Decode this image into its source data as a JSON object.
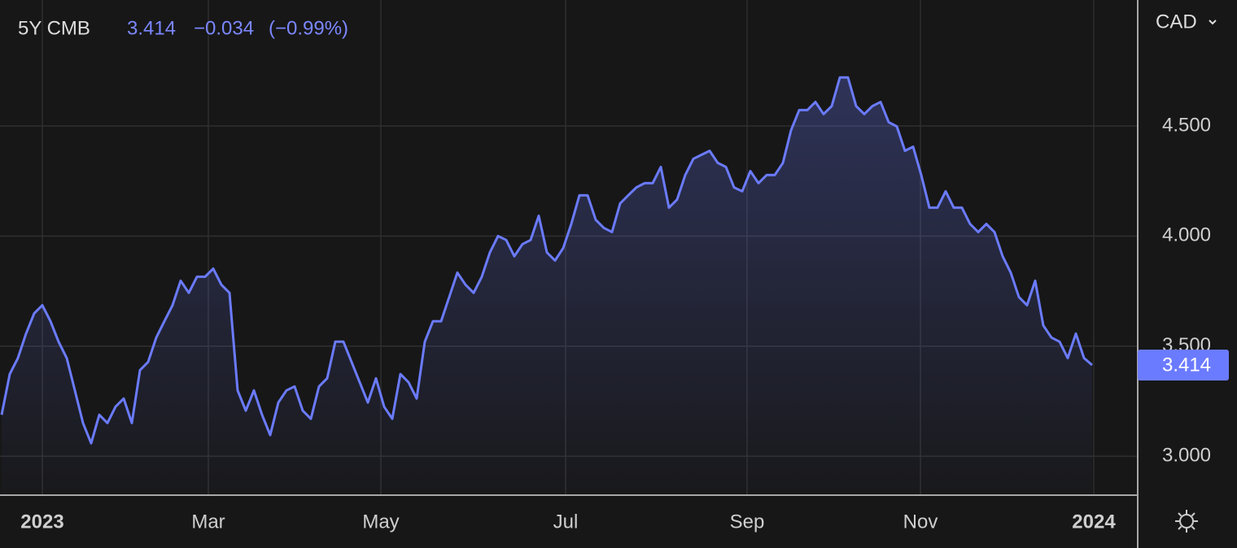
{
  "chart_data": {
    "type": "line",
    "title": "5Y CMB",
    "currency": "CAD",
    "change": "−0.034",
    "change_percent": "(−0.99%)",
    "series": [
      {
        "name": "5Y CMB",
        "color": "#6b7bff",
        "values": [
          3.188,
          3.373,
          3.446,
          3.557,
          3.649,
          3.686,
          3.613,
          3.52,
          3.446,
          3.299,
          3.151,
          3.059,
          3.188,
          3.151,
          3.225,
          3.262,
          3.151,
          3.391,
          3.428,
          3.539,
          3.613,
          3.686,
          3.797,
          3.742,
          3.815,
          3.815,
          3.852,
          3.779,
          3.742,
          3.299,
          3.207,
          3.299,
          3.188,
          3.096,
          3.244,
          3.299,
          3.317,
          3.207,
          3.17,
          3.317,
          3.354,
          3.52,
          3.52,
          3.428,
          3.336,
          3.244,
          3.354,
          3.225,
          3.17,
          3.373,
          3.336,
          3.262,
          3.52,
          3.613,
          3.613,
          3.723,
          3.834,
          3.779,
          3.742,
          3.815,
          3.926,
          4.0,
          3.982,
          3.908,
          3.963,
          3.982,
          4.092,
          3.926,
          3.889,
          3.945,
          4.055,
          4.185,
          4.185,
          4.074,
          4.037,
          4.018,
          4.148,
          4.185,
          4.221,
          4.24,
          4.24,
          4.314,
          4.129,
          4.166,
          4.277,
          4.351,
          4.369,
          4.387,
          4.332,
          4.314,
          4.221,
          4.203,
          4.295,
          4.24,
          4.277,
          4.277,
          4.332,
          4.48,
          4.572,
          4.572,
          4.609,
          4.554,
          4.59,
          4.72,
          4.72,
          4.59,
          4.554,
          4.59,
          4.609,
          4.517,
          4.498,
          4.387,
          4.406,
          4.277,
          4.129,
          4.129,
          4.203,
          4.129,
          4.129,
          4.055,
          4.018,
          4.055,
          4.018,
          3.908,
          3.834,
          3.723,
          3.686,
          3.797,
          3.594,
          3.539,
          3.52,
          3.446,
          3.557,
          3.446,
          3.414
        ]
      }
    ],
    "xlim": [
      -0.2,
      139.5
    ],
    "xticks": [
      {
        "value": 5.0,
        "label": "2023"
      },
      {
        "value": 25.4,
        "label": "Mar"
      },
      {
        "value": 46.6,
        "label": "May"
      },
      {
        "value": 69.3,
        "label": "Jul"
      },
      {
        "value": 91.6,
        "label": "Sep"
      },
      {
        "value": 112.9,
        "label": "Nov"
      },
      {
        "value": 134.2,
        "label": "2024"
      }
    ],
    "ylim": [
      2.827,
      5.072
    ],
    "yticks": [
      {
        "value": 3,
        "label": "3.000"
      },
      {
        "value": 3.5,
        "label": "3.500"
      },
      {
        "value": 4,
        "label": "4.000"
      },
      {
        "value": 4.5,
        "label": "4.500"
      }
    ],
    "grid": true
  }
}
